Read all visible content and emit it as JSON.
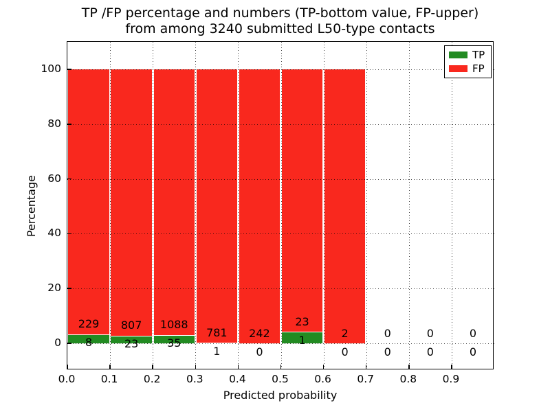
{
  "chart_data": {
    "type": "bar",
    "subtype": "stacked-percentage-histogram",
    "title_lines": [
      "TP /FP percentage and numbers (TP-bottom value, FP-upper)",
      "from among 3240 submitted L50-type contacts"
    ],
    "xlabel": "Predicted probability",
    "ylabel": "Percentage",
    "total_contacts": 3240,
    "bin_width": 0.1,
    "bin_starts": [
      0.0,
      0.1,
      0.2,
      0.3,
      0.4,
      0.5,
      0.6,
      0.7,
      0.8,
      0.9
    ],
    "categories": [
      "0.0-0.1",
      "0.1-0.2",
      "0.2-0.3",
      "0.3-0.4",
      "0.4-0.5",
      "0.5-0.6",
      "0.6-0.7",
      "0.7-0.8",
      "0.8-0.9",
      "0.9-1.0"
    ],
    "series": [
      {
        "name": "TP",
        "color": "#228b22",
        "values": [
          8,
          23,
          35,
          1,
          0,
          1,
          0,
          0,
          0,
          0
        ]
      },
      {
        "name": "FP",
        "color": "#f9281e",
        "values": [
          229,
          807,
          1088,
          781,
          242,
          23,
          2,
          0,
          0,
          0
        ]
      }
    ],
    "annotation_note": "FP count printed above each bar's TP segment, TP count printed below it",
    "xlim": [
      0.0,
      1.0
    ],
    "ylim": [
      -10,
      110
    ],
    "yticks": [
      0,
      20,
      40,
      60,
      80,
      100
    ],
    "xtick_labels": [
      "0.0",
      "0.1",
      "0.2",
      "0.3",
      "0.4",
      "0.5",
      "0.6",
      "0.7",
      "0.8",
      "0.9"
    ],
    "grid": "dotted",
    "grid_color": "#000000",
    "legend_position": "upper right",
    "background": "#ffffff"
  }
}
